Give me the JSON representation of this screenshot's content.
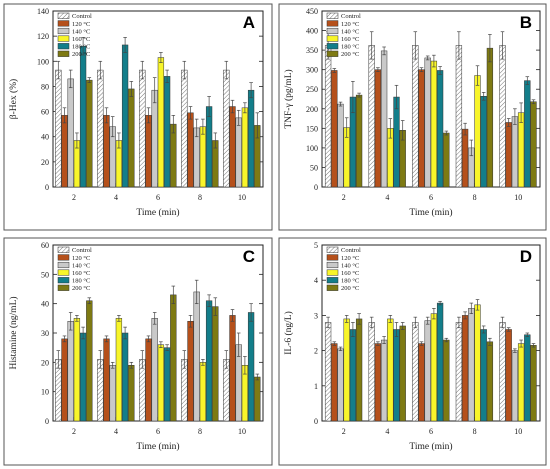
{
  "colors": {
    "Control": "#ffffff",
    "120 °C": "#b5501b",
    "140 °C": "#c9c9c9",
    "160 °C": "#f8f52a",
    "180 °C": "#137e8a",
    "200 °C": "#7e7a13"
  },
  "chart_data": [
    {
      "type": "bar",
      "panel": "A",
      "categories": [
        "2",
        "4",
        "6",
        "8",
        "10"
      ],
      "xlabel": "Time (min)",
      "ylabel": "β-Hex (%)",
      "ylim": [
        0,
        140
      ],
      "yticks": [
        "0",
        "20",
        "40",
        "60",
        "80",
        "100",
        "120",
        "140"
      ],
      "legend_position": "top-left",
      "series": [
        {
          "name": "Control",
          "values": [
            93,
            93,
            93,
            93,
            93
          ],
          "errors": [
            7,
            7,
            7,
            7,
            7
          ]
        },
        {
          "name": "120 °C",
          "values": [
            57,
            57,
            57,
            59,
            64
          ],
          "errors": [
            6,
            6,
            6,
            5,
            5
          ]
        },
        {
          "name": "140 °C",
          "values": [
            86,
            48,
            77,
            47,
            55
          ],
          "errors": [
            7,
            8,
            10,
            7,
            6
          ]
        },
        {
          "name": "160 °C",
          "values": [
            37,
            37,
            103,
            48,
            63
          ],
          "errors": [
            6,
            6,
            4,
            6,
            4
          ]
        },
        {
          "name": "180 °C",
          "values": [
            112,
            113,
            88,
            64,
            77
          ],
          "errors": [
            7,
            6,
            5,
            8,
            6
          ]
        },
        {
          "name": "200 °C",
          "values": [
            85,
            78,
            50,
            37,
            49
          ],
          "errors": [
            2,
            6,
            7,
            6,
            10
          ]
        }
      ]
    },
    {
      "type": "bar",
      "panel": "B",
      "categories": [
        "2",
        "4",
        "6",
        "8",
        "10"
      ],
      "xlabel": "Time (min)",
      "ylabel": "TNF-γ (pg/mL)",
      "ylim": [
        0,
        450
      ],
      "yticks": [
        "0",
        "50",
        "100",
        "150",
        "200",
        "250",
        "300",
        "350",
        "400",
        "450"
      ],
      "legend_position": "top-left",
      "series": [
        {
          "name": "Control",
          "values": [
            362,
            362,
            362,
            362,
            362
          ],
          "errors": [
            35,
            35,
            35,
            35,
            35
          ]
        },
        {
          "name": "120 °C",
          "values": [
            298,
            300,
            300,
            148,
            165
          ],
          "errors": [
            5,
            5,
            5,
            15,
            10
          ]
        },
        {
          "name": "140 °C",
          "values": [
            212,
            348,
            330,
            100,
            180
          ],
          "errors": [
            5,
            10,
            5,
            20,
            20
          ]
        },
        {
          "name": "160 °C",
          "values": [
            152,
            150,
            322,
            285,
            190
          ],
          "errors": [
            25,
            25,
            15,
            25,
            25
          ]
        },
        {
          "name": "180 °C",
          "values": [
            230,
            230,
            298,
            232,
            272
          ],
          "errors": [
            40,
            30,
            10,
            10,
            10
          ]
        },
        {
          "name": "200 °C",
          "values": [
            235,
            145,
            138,
            355,
            218
          ],
          "errors": [
            5,
            25,
            5,
            35,
            5
          ]
        }
      ]
    },
    {
      "type": "bar",
      "panel": "C",
      "categories": [
        "2",
        "4",
        "6",
        "8",
        "10"
      ],
      "xlabel": "Time (min)",
      "ylabel": "Histamine (ng/mL)",
      "ylim": [
        0,
        60
      ],
      "yticks": [
        "0",
        "10",
        "20",
        "30",
        "40",
        "50",
        "60"
      ],
      "legend_position": "top-left",
      "series": [
        {
          "name": "Control",
          "values": [
            21,
            21,
            21,
            21,
            21
          ],
          "errors": [
            3,
            3,
            3,
            3,
            3
          ]
        },
        {
          "name": "120 °C",
          "values": [
            28,
            28,
            28,
            34,
            36
          ],
          "errors": [
            1,
            1,
            1,
            2,
            2
          ]
        },
        {
          "name": "140 °C",
          "values": [
            34,
            19,
            35,
            44,
            26
          ],
          "errors": [
            3,
            1,
            2,
            4,
            4
          ]
        },
        {
          "name": "160 °C",
          "values": [
            35,
            35,
            26,
            20,
            19
          ],
          "errors": [
            1,
            1,
            1,
            1,
            3
          ]
        },
        {
          "name": "180 °C",
          "values": [
            30,
            30,
            25,
            41,
            37
          ],
          "errors": [
            2,
            2,
            1,
            2,
            3
          ]
        },
        {
          "name": "200 °C",
          "values": [
            41,
            19,
            43,
            39,
            15
          ],
          "errors": [
            1,
            1,
            3,
            3,
            1
          ]
        }
      ]
    },
    {
      "type": "bar",
      "panel": "D",
      "categories": [
        "2",
        "4",
        "6",
        "8",
        "10"
      ],
      "xlabel": "Time (min)",
      "ylabel": "IL-6 (ng/L)",
      "ylim": [
        0,
        5
      ],
      "yticks": [
        "0",
        "1",
        "2",
        "3",
        "4",
        "5"
      ],
      "legend_position": "top-left",
      "series": [
        {
          "name": "Control",
          "values": [
            2.8,
            2.8,
            2.8,
            2.8,
            2.8
          ],
          "errors": [
            0.15,
            0.15,
            0.15,
            0.15,
            0.15
          ]
        },
        {
          "name": "120 °C",
          "values": [
            2.2,
            2.2,
            2.2,
            3.0,
            2.6
          ],
          "errors": [
            0.05,
            0.05,
            0.05,
            0.1,
            0.05
          ]
        },
        {
          "name": "140 °C",
          "values": [
            2.05,
            2.3,
            2.85,
            3.2,
            2.0
          ],
          "errors": [
            0.05,
            0.1,
            0.1,
            0.15,
            0.05
          ]
        },
        {
          "name": "160 °C",
          "values": [
            2.9,
            2.9,
            3.05,
            3.3,
            2.2
          ],
          "errors": [
            0.1,
            0.1,
            0.15,
            0.15,
            0.1
          ]
        },
        {
          "name": "180 °C",
          "values": [
            2.6,
            2.6,
            3.35,
            2.6,
            2.45
          ],
          "errors": [
            0.2,
            0.2,
            0.05,
            0.1,
            0.05
          ]
        },
        {
          "name": "200 °C",
          "values": [
            2.9,
            2.7,
            2.3,
            2.25,
            2.15
          ],
          "errors": [
            0.15,
            0.1,
            0.05,
            0.1,
            0.05
          ]
        }
      ]
    }
  ]
}
